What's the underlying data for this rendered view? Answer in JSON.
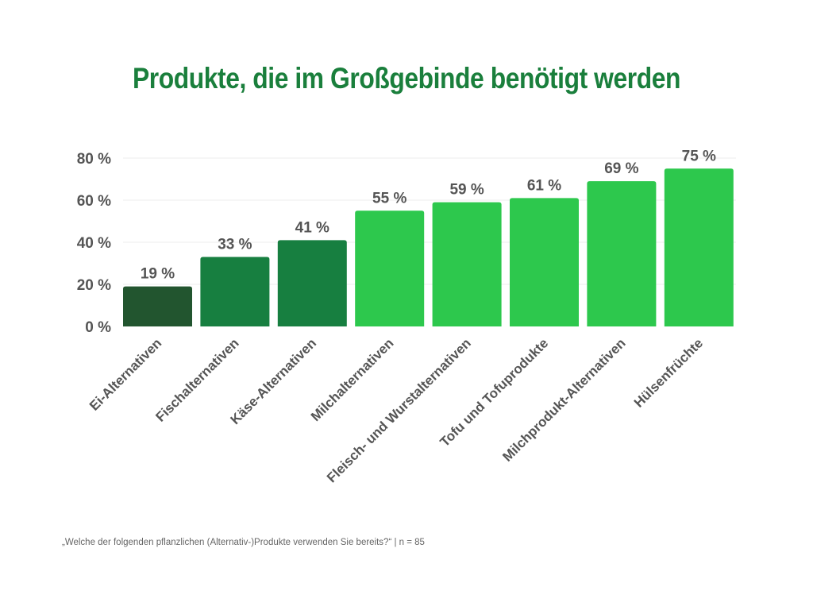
{
  "chart_data": {
    "type": "bar",
    "title": "Produkte, die im Großgebinde benötigt werden",
    "note": "„Welche der folgenden pflanzlichen (Alternativ-)Produkte verwenden Sie bereits?“ | n = 85",
    "categories": [
      "Ei-Alternativen",
      "Fischalternativen",
      "Käse-Alternativen",
      "Milchalternativen",
      "Fleisch- und Wurstalternativen",
      "Tofu und Tofuprodukte",
      "Milchprodukt-Alternativen",
      "Hülsenfrüchte"
    ],
    "values": [
      19,
      33,
      41,
      55,
      59,
      61,
      69,
      75
    ],
    "data_labels": [
      "19 %",
      "33 %",
      "41 %",
      "55 %",
      "59 %",
      "61 %",
      "69 %",
      "75 %"
    ],
    "colors": [
      "#22552f",
      "#177f40",
      "#177f40",
      "#2dc84d",
      "#2dc84d",
      "#2dc84d",
      "#2dc84d",
      "#2dc84d"
    ],
    "ylim": [
      0,
      80
    ],
    "yticks": [
      0,
      20,
      40,
      60,
      80
    ],
    "ytick_labels": [
      "0 %",
      "20 %",
      "40 %",
      "60 %",
      "80 %"
    ],
    "grid": true,
    "xlabel": "",
    "ylabel": ""
  }
}
